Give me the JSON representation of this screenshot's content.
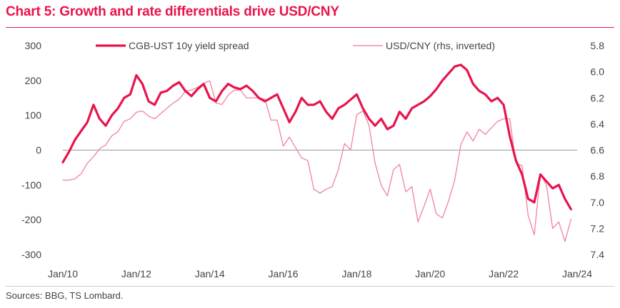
{
  "title": "Chart 5: Growth and rate differentials drive USD/CNY",
  "source": "Sources: BBG, TS Lombard.",
  "colors": {
    "title": "#e8144b",
    "spread": "#e8144b",
    "usdcny": "#f28aa6",
    "zero_line": "#999999"
  },
  "chart_data": {
    "type": "line",
    "title": "Chart 5: Growth and rate differentials drive USD/CNY",
    "xlabel": "",
    "ylabel": "",
    "y2label": "",
    "x_ticks": [
      "Jan/10",
      "Jan/12",
      "Jan/14",
      "Jan/16",
      "Jan/18",
      "Jan/20",
      "Jan/22",
      "Jan/24"
    ],
    "xlim": [
      "2010-01",
      "2024-01"
    ],
    "ylim": [
      -300,
      300
    ],
    "y_ticks": [
      -300,
      -200,
      -100,
      0,
      100,
      200,
      300
    ],
    "y_tick_labels": [
      "-300",
      "-200",
      "-100",
      "0",
      "100",
      "200",
      "300"
    ],
    "y2lim": [
      7.4,
      5.8
    ],
    "y2_inverted": true,
    "y2_ticks": [
      5.8,
      6.0,
      6.2,
      6.4,
      6.6,
      6.8,
      7.0,
      7.2,
      7.4
    ],
    "y2_tick_labels": [
      "5.8",
      "6.0",
      "6.2",
      "6.4",
      "6.6",
      "6.8",
      "7.0",
      "7.2",
      "7.4"
    ],
    "legend_position": "top",
    "grid": false,
    "series": [
      {
        "name": "CGB-UST 10y yield spread",
        "axis": "left",
        "color": "#e8144b",
        "x": [
          "2010-01",
          "2010-03",
          "2010-05",
          "2010-07",
          "2010-09",
          "2010-11",
          "2011-01",
          "2011-03",
          "2011-05",
          "2011-07",
          "2011-09",
          "2011-11",
          "2012-01",
          "2012-03",
          "2012-05",
          "2012-07",
          "2012-09",
          "2012-11",
          "2013-01",
          "2013-03",
          "2013-05",
          "2013-07",
          "2013-09",
          "2013-11",
          "2014-01",
          "2014-03",
          "2014-05",
          "2014-07",
          "2014-09",
          "2014-11",
          "2015-01",
          "2015-03",
          "2015-05",
          "2015-07",
          "2015-09",
          "2015-11",
          "2016-01",
          "2016-03",
          "2016-05",
          "2016-07",
          "2016-09",
          "2016-11",
          "2017-01",
          "2017-03",
          "2017-05",
          "2017-07",
          "2017-09",
          "2017-11",
          "2018-01",
          "2018-03",
          "2018-05",
          "2018-07",
          "2018-09",
          "2018-11",
          "2019-01",
          "2019-03",
          "2019-05",
          "2019-07",
          "2019-09",
          "2019-11",
          "2020-01",
          "2020-03",
          "2020-05",
          "2020-07",
          "2020-09",
          "2020-11",
          "2021-01",
          "2021-03",
          "2021-05",
          "2021-07",
          "2021-09",
          "2021-11",
          "2022-01",
          "2022-03",
          "2022-05",
          "2022-07",
          "2022-09",
          "2022-11",
          "2023-01",
          "2023-03",
          "2023-05",
          "2023-07",
          "2023-09",
          "2023-11"
        ],
        "values": [
          -35,
          -5,
          30,
          55,
          80,
          130,
          90,
          70,
          100,
          120,
          150,
          160,
          215,
          190,
          140,
          130,
          165,
          170,
          185,
          195,
          170,
          155,
          175,
          190,
          150,
          140,
          170,
          190,
          180,
          175,
          185,
          170,
          150,
          140,
          150,
          160,
          120,
          80,
          110,
          150,
          130,
          130,
          140,
          110,
          90,
          120,
          130,
          145,
          160,
          120,
          90,
          70,
          90,
          60,
          70,
          110,
          90,
          120,
          130,
          140,
          155,
          175,
          200,
          220,
          240,
          245,
          230,
          190,
          170,
          160,
          140,
          150,
          130,
          40,
          -30,
          -70,
          -140,
          -150,
          -70,
          -90,
          -110,
          -100,
          -140,
          -170
        ]
      },
      {
        "name": "USD/CNY (rhs, inverted)",
        "axis": "right",
        "color": "#f28aa6",
        "x": [
          "2010-01",
          "2010-03",
          "2010-05",
          "2010-07",
          "2010-09",
          "2010-11",
          "2011-01",
          "2011-03",
          "2011-05",
          "2011-07",
          "2011-09",
          "2011-11",
          "2012-01",
          "2012-03",
          "2012-05",
          "2012-07",
          "2012-09",
          "2012-11",
          "2013-01",
          "2013-03",
          "2013-05",
          "2013-07",
          "2013-09",
          "2013-11",
          "2014-01",
          "2014-03",
          "2014-05",
          "2014-07",
          "2014-09",
          "2014-11",
          "2015-01",
          "2015-03",
          "2015-05",
          "2015-07",
          "2015-09",
          "2015-11",
          "2016-01",
          "2016-03",
          "2016-05",
          "2016-07",
          "2016-09",
          "2016-11",
          "2017-01",
          "2017-03",
          "2017-05",
          "2017-07",
          "2017-09",
          "2017-11",
          "2018-01",
          "2018-03",
          "2018-05",
          "2018-07",
          "2018-09",
          "2018-11",
          "2019-01",
          "2019-03",
          "2019-05",
          "2019-07",
          "2019-09",
          "2019-11",
          "2020-01",
          "2020-03",
          "2020-05",
          "2020-07",
          "2020-09",
          "2020-11",
          "2021-01",
          "2021-03",
          "2021-05",
          "2021-07",
          "2021-09",
          "2021-11",
          "2022-01",
          "2022-03",
          "2022-05",
          "2022-07",
          "2022-09",
          "2022-11",
          "2023-01",
          "2023-03",
          "2023-05",
          "2023-07",
          "2023-09",
          "2023-11"
        ],
        "values": [
          6.83,
          6.83,
          6.82,
          6.78,
          6.7,
          6.65,
          6.59,
          6.56,
          6.49,
          6.46,
          6.38,
          6.36,
          6.31,
          6.3,
          6.34,
          6.36,
          6.32,
          6.28,
          6.24,
          6.21,
          6.15,
          6.14,
          6.12,
          6.09,
          6.07,
          6.24,
          6.25,
          6.18,
          6.14,
          6.14,
          6.2,
          6.2,
          6.2,
          6.21,
          6.37,
          6.37,
          6.57,
          6.5,
          6.58,
          6.66,
          6.68,
          6.9,
          6.93,
          6.9,
          6.88,
          6.75,
          6.55,
          6.6,
          6.33,
          6.3,
          6.41,
          6.7,
          6.87,
          6.95,
          6.75,
          6.71,
          6.92,
          6.88,
          7.15,
          7.03,
          6.9,
          7.09,
          7.12,
          6.99,
          6.83,
          6.56,
          6.46,
          6.53,
          6.44,
          6.48,
          6.43,
          6.38,
          6.36,
          6.36,
          6.7,
          6.72,
          7.1,
          7.25,
          6.78,
          6.87,
          7.2,
          7.15,
          7.3,
          7.13
        ]
      }
    ]
  }
}
